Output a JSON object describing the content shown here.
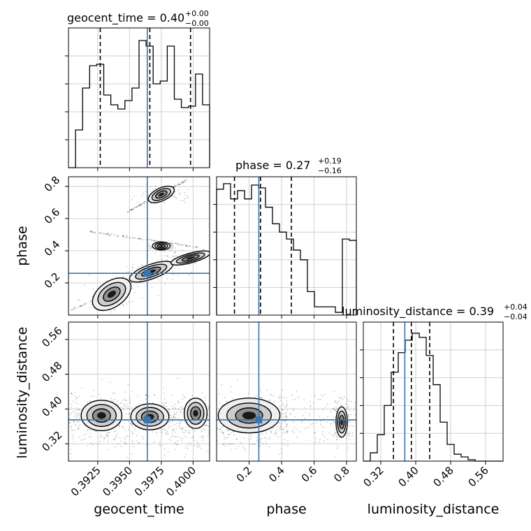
{
  "chart_data": {
    "type": "corner",
    "grid": true,
    "truth_color": "#3b75af",
    "hist_color": "#000000",
    "parameters": [
      {
        "name": "geocent_time",
        "xlabel": "geocent_time",
        "ylabel": "",
        "range": [
          0.3902,
          0.4013
        ],
        "ticks": [
          0.3925,
          0.395,
          0.3975,
          0.4
        ],
        "tick_labels": [
          "0.3925",
          "0.3950",
          "0.3975",
          "0.4000"
        ],
        "truth": 0.3964,
        "quantiles": [
          0.3927,
          0.3966,
          0.3998
        ],
        "title": {
          "text": "geocent_time = 0.40",
          "sup": "+0.00",
          "sub": "−0.00"
        },
        "hist": [
          0.0,
          0.27,
          0.57,
          0.73,
          0.74,
          0.52,
          0.45,
          0.42,
          0.48,
          0.57,
          0.91,
          0.87,
          0.6,
          0.62,
          0.87,
          0.49,
          0.43,
          0.44,
          0.67,
          0.45
        ]
      },
      {
        "name": "phase",
        "xlabel": "phase",
        "ylabel": "phase",
        "range": [
          0.0,
          0.86
        ],
        "ticks": [
          0.2,
          0.4,
          0.6,
          0.8
        ],
        "tick_labels": [
          "0.2",
          "0.4",
          "0.6",
          "0.8"
        ],
        "truth": 0.26,
        "quantiles": [
          0.11,
          0.27,
          0.46
        ],
        "title": {
          "text": "phase = 0.27",
          "sup": "+0.19",
          "sub": "−0.16"
        },
        "hist": [
          0.91,
          0.95,
          0.84,
          0.9,
          0.84,
          0.94,
          0.92,
          0.78,
          0.66,
          0.6,
          0.55,
          0.47,
          0.4,
          0.17,
          0.06,
          0.06,
          0.06,
          0.02,
          0.55,
          0.54
        ]
      },
      {
        "name": "luminosity_distance",
        "xlabel": "luminosity_distance",
        "ylabel": "luminosity_distance",
        "range": [
          0.28,
          0.6
        ],
        "ticks": [
          0.32,
          0.4,
          0.48,
          0.56
        ],
        "tick_labels": [
          "0.32",
          "0.40",
          "0.48",
          "0.56"
        ],
        "truth": 0.375,
        "quantiles": [
          0.349,
          0.39,
          0.432
        ],
        "title": {
          "text": "luminosity_distance = 0.39",
          "sup": "+0.04",
          "sub": "−0.04"
        },
        "hist": [
          0.0,
          0.06,
          0.19,
          0.4,
          0.64,
          0.78,
          0.87,
          0.92,
          0.89,
          0.76,
          0.55,
          0.28,
          0.12,
          0.05,
          0.03,
          0.01,
          0.0,
          0.0,
          0.0,
          0.0
        ]
      }
    ],
    "contours_2d": [
      {
        "x": "geocent_time",
        "y": "phase",
        "blobs": [
          {
            "cx": 0.3936,
            "cy": 0.13,
            "w": 0.0034,
            "h": 0.16,
            "rot": -35
          },
          {
            "cx": 0.3967,
            "cy": 0.27,
            "w": 0.0036,
            "h": 0.09,
            "rot": -20
          },
          {
            "cx": 0.3998,
            "cy": 0.355,
            "w": 0.0032,
            "h": 0.06,
            "rot": -15
          },
          {
            "cx": 0.3975,
            "cy": 0.75,
            "w": 0.0022,
            "h": 0.08,
            "rot": -25
          },
          {
            "cx": 0.3975,
            "cy": 0.43,
            "w": 0.0014,
            "h": 0.05,
            "rot": 0
          }
        ],
        "streaks": [
          {
            "x0": 0.3904,
            "y0": 0.03,
            "x1": 0.4013,
            "y1": 0.42
          },
          {
            "x0": 0.3918,
            "y0": 0.52,
            "x1": 0.4005,
            "y1": 0.42
          },
          {
            "x0": 0.3948,
            "y0": 0.64,
            "x1": 0.3995,
            "y1": 0.84
          }
        ]
      },
      {
        "x": "geocent_time",
        "y": "luminosity_distance",
        "blobs": [
          {
            "cx": 0.3928,
            "cy": 0.385,
            "w": 0.0032,
            "h": 0.07,
            "rot": 0
          },
          {
            "cx": 0.3966,
            "cy": 0.382,
            "w": 0.003,
            "h": 0.06,
            "rot": 0
          },
          {
            "cx": 0.4002,
            "cy": 0.39,
            "w": 0.0018,
            "h": 0.07,
            "rot": 0
          }
        ],
        "streaks": []
      },
      {
        "x": "phase",
        "y": "luminosity_distance",
        "blobs": [
          {
            "cx": 0.2,
            "cy": 0.385,
            "w": 0.38,
            "h": 0.08,
            "rot": 0
          },
          {
            "cx": 0.77,
            "cy": 0.37,
            "w": 0.07,
            "h": 0.07,
            "rot": 0
          }
        ],
        "streaks": []
      }
    ]
  }
}
